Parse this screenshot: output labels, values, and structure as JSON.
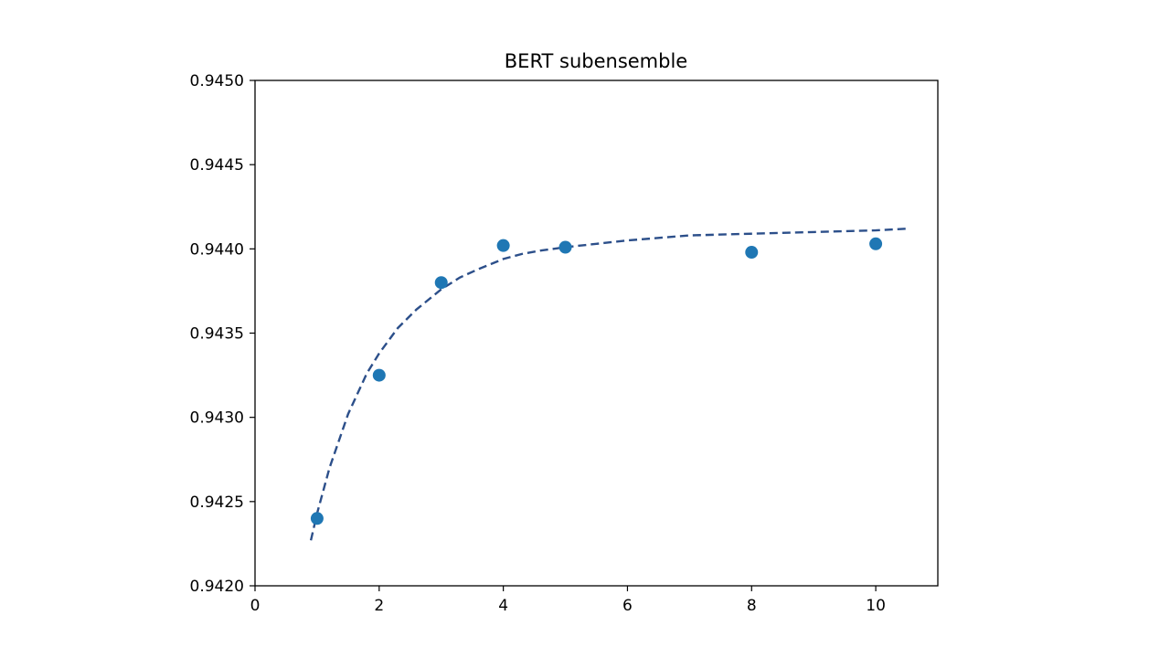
{
  "chart_data": {
    "type": "scatter",
    "title": "BERT subensemble",
    "xlabel": "",
    "ylabel": "",
    "xlim": [
      0,
      11
    ],
    "ylim": [
      0.942,
      0.945
    ],
    "x_ticks": [
      0,
      2,
      4,
      6,
      8,
      10
    ],
    "y_ticks": [
      0.942,
      0.9425,
      0.943,
      0.9435,
      0.944,
      0.9445,
      0.945
    ],
    "y_tick_labels": [
      "0.9420",
      "0.9425",
      "0.9430",
      "0.9435",
      "0.9440",
      "0.9445",
      "0.9450"
    ],
    "grid": false,
    "series": [
      {
        "type": "scatter",
        "color": "#1f77b4",
        "x": [
          1,
          2,
          3,
          4,
          5,
          8,
          10
        ],
        "y": [
          0.9424,
          0.94325,
          0.9438,
          0.94402,
          0.94401,
          0.94398,
          0.94403
        ]
      },
      {
        "type": "line",
        "style": "dashed",
        "color": "#2c4f8a",
        "x": [
          0.9,
          1.0,
          1.2,
          1.5,
          1.8,
          2.0,
          2.3,
          2.6,
          3.0,
          3.3,
          3.6,
          4.0,
          4.3,
          4.6,
          5.0,
          5.5,
          6.0,
          7.0,
          8.0,
          9.0,
          10.0,
          10.5
        ],
        "y": [
          0.94227,
          0.94243,
          0.9427,
          0.94302,
          0.94326,
          0.94338,
          0.94353,
          0.94364,
          0.94376,
          0.94383,
          0.94388,
          0.94394,
          0.94397,
          0.94399,
          0.94401,
          0.94403,
          0.94405,
          0.94408,
          0.94409,
          0.9441,
          0.94411,
          0.94412
        ]
      }
    ]
  }
}
